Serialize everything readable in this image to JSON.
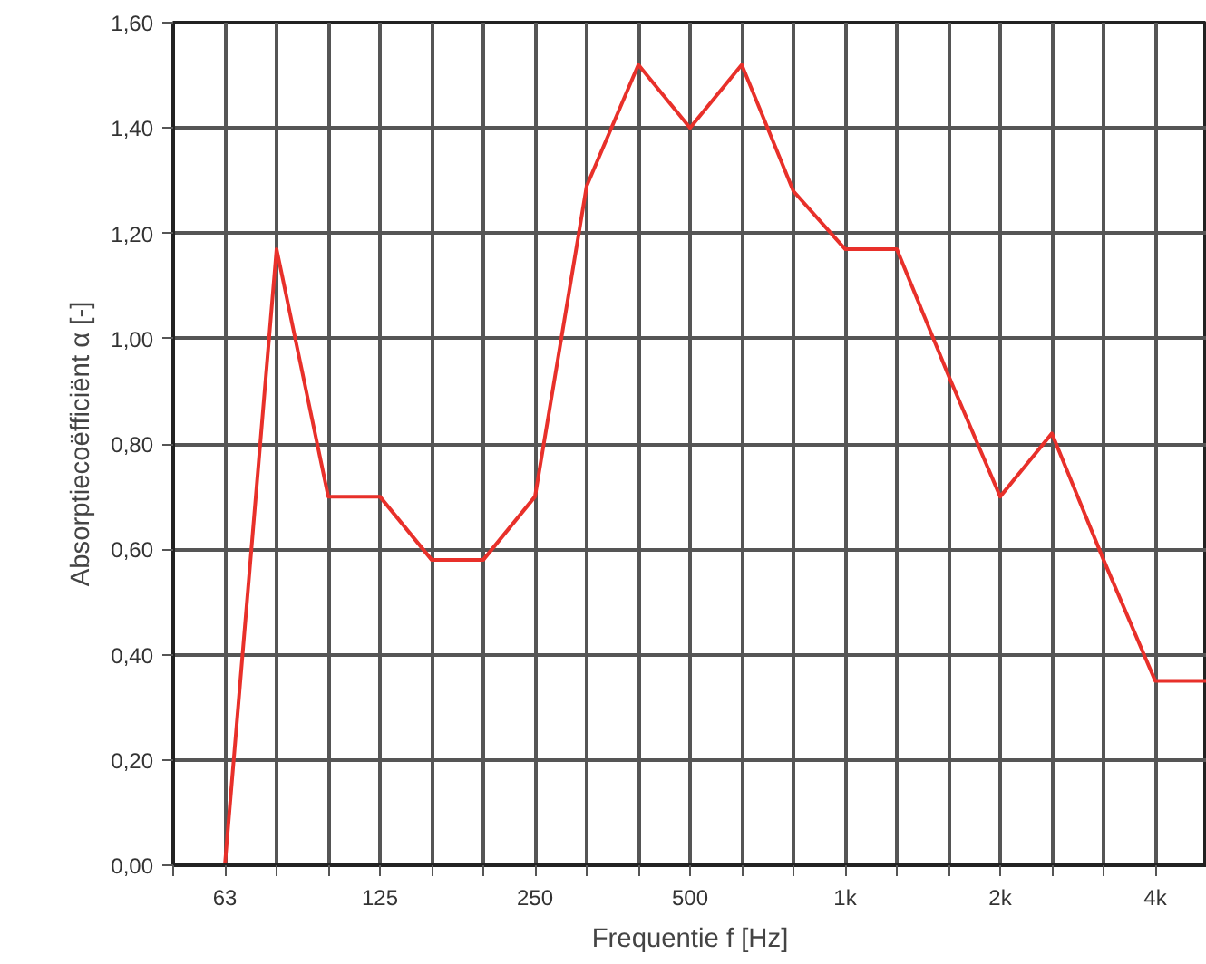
{
  "chart_data": {
    "type": "line",
    "xlabel": "Frequentie f [Hz]",
    "ylabel": "Absorptiecoëfficiënt α [-]",
    "categories": [
      null,
      "63",
      null,
      null,
      "125",
      null,
      null,
      "250",
      null,
      null,
      "500",
      null,
      null,
      "1k",
      null,
      null,
      "2k",
      null,
      null,
      "4k",
      null
    ],
    "series": [
      {
        "color": "#e8302a",
        "values": [
          0,
          0,
          1.17,
          0.7,
          0.7,
          0.58,
          0.58,
          0.7,
          1.29,
          1.52,
          1.4,
          1.52,
          1.28,
          1.17,
          1.17,
          0.93,
          0.7,
          0.82,
          0.58,
          0.35,
          0.35
        ]
      }
    ],
    "ylim": [
      0,
      1.6
    ],
    "yticks": [
      {
        "value": 0,
        "label": "0,00"
      },
      {
        "value": 0.2,
        "label": "0,20"
      },
      {
        "value": 0.4,
        "label": "0,40"
      },
      {
        "value": 0.6,
        "label": "0,60"
      },
      {
        "value": 0.8,
        "label": "0,80"
      },
      {
        "value": 1.0,
        "label": "1,00"
      },
      {
        "value": 1.2,
        "label": "1,20"
      },
      {
        "value": 1.4,
        "label": "1,40"
      },
      {
        "value": 1.6,
        "label": "1,60"
      }
    ],
    "grid": true,
    "marker": "none",
    "line_style": "solid"
  }
}
